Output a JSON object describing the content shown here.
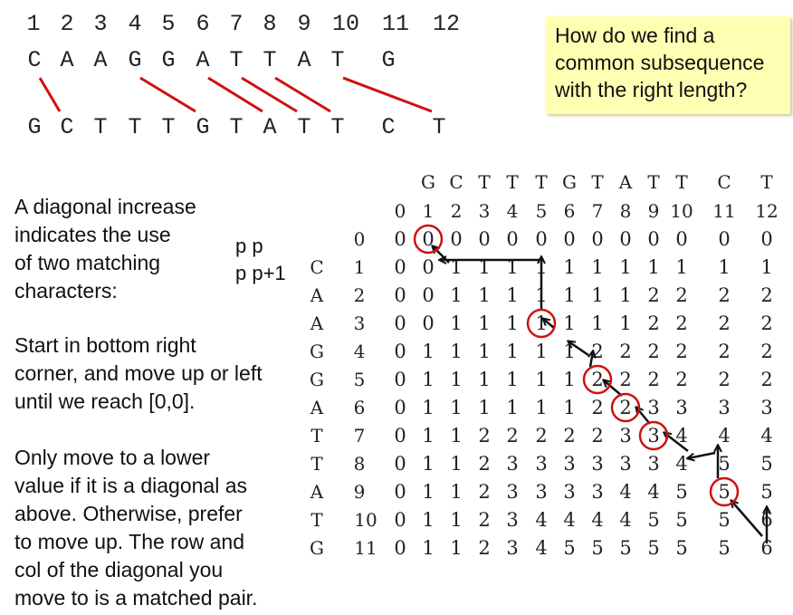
{
  "sequence_index": [
    "1",
    "2",
    "3",
    "4",
    "5",
    "6",
    "7",
    "8",
    "9",
    "10",
    "11",
    "12"
  ],
  "seq_top": [
    "C",
    "A",
    "A",
    "G",
    "G",
    "A",
    "T",
    "T",
    "A",
    "T",
    "G"
  ],
  "seq_bottom": [
    "G",
    "C",
    "T",
    "T",
    "T",
    "G",
    "T",
    "A",
    "T",
    "T",
    "C",
    "T"
  ],
  "question_lines": [
    "How do we find a",
    "common subsequence",
    "with the right length?"
  ],
  "explanation": {
    "diag_lines": [
      "A diagonal increase",
      "indicates  the use",
      "of two matching",
      "characters:"
    ],
    "pp_lines": [
      "p p",
      "p p+1"
    ],
    "start_lines": [
      "Start in bottom right",
      "corner, and move up or left",
      "until we reach [0,0]."
    ],
    "move_lines": [
      "Only move to a lower",
      "value if it is a diagonal as",
      "above. Otherwise, prefer",
      "to move up. The row and",
      "col of the diagonal you",
      "move to is a matched pair."
    ]
  },
  "dp_table": {
    "col_letters": [
      "G",
      "C",
      "T",
      "T",
      "T",
      "G",
      "T",
      "A",
      "T",
      "T",
      "C",
      "T"
    ],
    "col_index": [
      "0",
      "1",
      "2",
      "3",
      "4",
      "5",
      "6",
      "7",
      "8",
      "9",
      "10",
      "11",
      "12"
    ],
    "row_letters": [
      "",
      "C",
      "A",
      "A",
      "G",
      "G",
      "A",
      "T",
      "T",
      "A",
      "T",
      "G"
    ],
    "row_index": [
      "0",
      "1",
      "2",
      "3",
      "4",
      "5",
      "6",
      "7",
      "8",
      "9",
      "10",
      "11"
    ],
    "rows": [
      [
        "0",
        "0",
        "0",
        "0",
        "0",
        "0",
        "0",
        "0",
        "0",
        "0",
        "0",
        "0",
        "0"
      ],
      [
        "0",
        "0",
        "1",
        "1",
        "1",
        "1",
        "1",
        "1",
        "1",
        "1",
        "1",
        "1",
        "1"
      ],
      [
        "0",
        "0",
        "1",
        "1",
        "1",
        "1",
        "1",
        "1",
        "1",
        "2",
        "2",
        "2",
        "2"
      ],
      [
        "0",
        "0",
        "1",
        "1",
        "1",
        "1",
        "1",
        "1",
        "1",
        "2",
        "2",
        "2",
        "2"
      ],
      [
        "0",
        "1",
        "1",
        "1",
        "1",
        "1",
        "1",
        "2",
        "2",
        "2",
        "2",
        "2",
        "2"
      ],
      [
        "0",
        "1",
        "1",
        "1",
        "1",
        "1",
        "1",
        "2",
        "2",
        "2",
        "2",
        "2",
        "2"
      ],
      [
        "0",
        "1",
        "1",
        "1",
        "1",
        "1",
        "1",
        "2",
        "2",
        "3",
        "3",
        "3",
        "3"
      ],
      [
        "0",
        "1",
        "1",
        "2",
        "2",
        "2",
        "2",
        "2",
        "3",
        "3",
        "4",
        "4",
        "4"
      ],
      [
        "0",
        "1",
        "1",
        "2",
        "3",
        "3",
        "3",
        "3",
        "3",
        "3",
        "4",
        "5",
        "5"
      ],
      [
        "0",
        "1",
        "1",
        "2",
        "3",
        "3",
        "3",
        "3",
        "4",
        "4",
        "5",
        "5",
        "5"
      ],
      [
        "0",
        "1",
        "1",
        "2",
        "3",
        "4",
        "4",
        "4",
        "4",
        "5",
        "5",
        "5",
        "6"
      ],
      [
        "0",
        "1",
        "1",
        "2",
        "3",
        "4",
        "5",
        "5",
        "5",
        "5",
        "5",
        "5",
        "6"
      ]
    ],
    "circled_cells": [
      [
        0,
        1
      ],
      [
        3,
        5
      ],
      [
        5,
        7
      ],
      [
        6,
        8
      ],
      [
        7,
        9
      ],
      [
        9,
        11
      ]
    ],
    "circle_color": "#d01010",
    "line_color": "#d01010"
  }
}
